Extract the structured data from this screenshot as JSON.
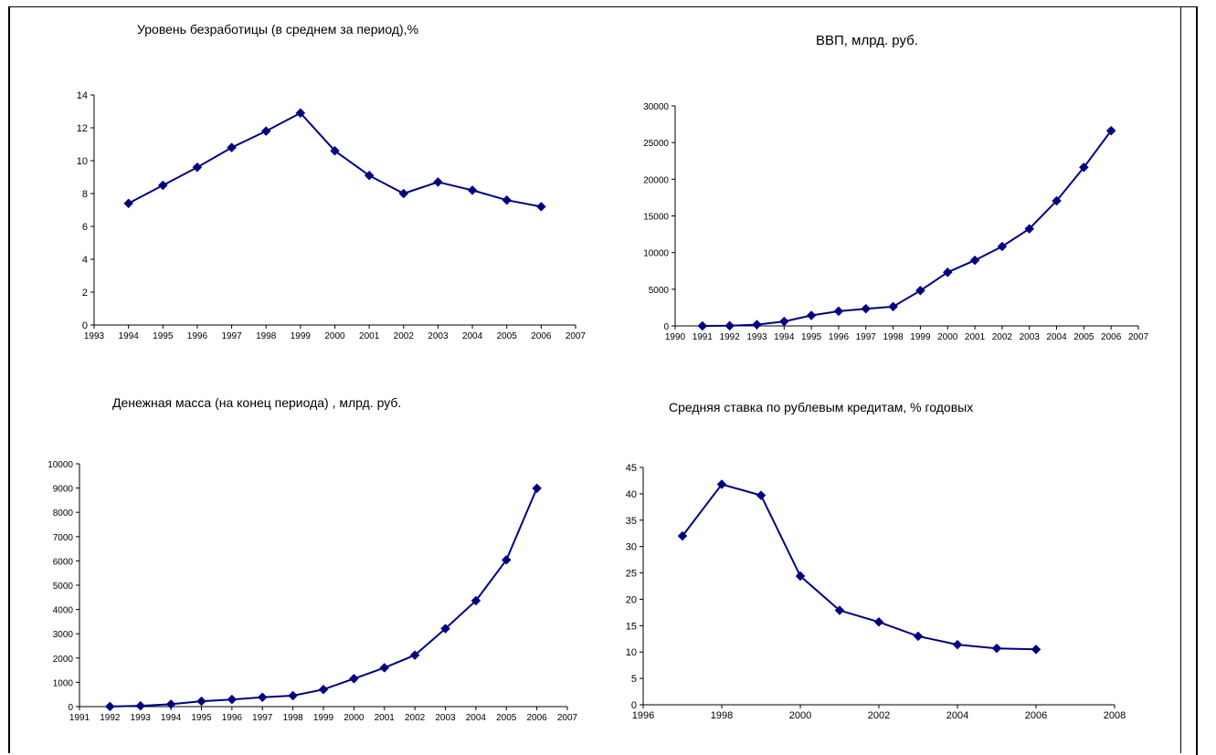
{
  "chart_data": [
    {
      "type": "line",
      "title": "Уровень безработицы (в среднем за период),%",
      "xlabel": "",
      "ylabel": "",
      "xlim": [
        1993,
        2007
      ],
      "ylim": [
        0,
        14
      ],
      "yticks": [
        0,
        2,
        4,
        6,
        8,
        10,
        12,
        14
      ],
      "xticks": [
        1993,
        1994,
        1995,
        1996,
        1997,
        1998,
        1999,
        2000,
        2001,
        2002,
        2003,
        2004,
        2005,
        2006,
        2007
      ],
      "series": [
        {
          "x": [
            1994,
            1995,
            1996,
            1997,
            1998,
            1999,
            2000,
            2001,
            2002,
            2003,
            2004,
            2005,
            2006
          ],
          "values": [
            7.4,
            8.5,
            9.6,
            10.8,
            11.8,
            12.9,
            10.6,
            9.1,
            8.0,
            8.7,
            8.2,
            7.6,
            7.2
          ]
        }
      ],
      "grid": false
    },
    {
      "type": "line",
      "title": "ВВП, млрд. руб.",
      "xlabel": "",
      "ylabel": "",
      "xlim": [
        1990,
        2007
      ],
      "ylim": [
        0,
        30000
      ],
      "yticks": [
        0,
        5000,
        10000,
        15000,
        20000,
        25000,
        30000
      ],
      "xticks": [
        1990,
        1991,
        1992,
        1993,
        1994,
        1995,
        1996,
        1997,
        1998,
        1999,
        2000,
        2001,
        2002,
        2003,
        2004,
        2005,
        2006,
        2007
      ],
      "series": [
        {
          "x": [
            1991,
            1992,
            1993,
            1994,
            1995,
            1996,
            1997,
            1998,
            1999,
            2000,
            2001,
            2002,
            2003,
            2004,
            2005,
            2006
          ],
          "values": [
            1,
            19,
            172,
            610,
            1429,
            2008,
            2343,
            2630,
            4823,
            7306,
            8944,
            10831,
            13243,
            17048,
            21625,
            26621
          ]
        }
      ],
      "grid": false
    },
    {
      "type": "line",
      "title": "Денежная масса (на конец периода) , млрд. руб.",
      "xlabel": "",
      "ylabel": "",
      "xlim": [
        1991,
        2007
      ],
      "ylim": [
        0,
        10000
      ],
      "yticks": [
        0,
        1000,
        2000,
        3000,
        4000,
        5000,
        6000,
        7000,
        8000,
        9000,
        10000
      ],
      "xticks": [
        1991,
        1992,
        1993,
        1994,
        1995,
        1996,
        1997,
        1998,
        1999,
        2000,
        2001,
        2002,
        2003,
        2004,
        2005,
        2006,
        2007
      ],
      "series": [
        {
          "x": [
            1992,
            1993,
            1994,
            1995,
            1996,
            1997,
            1998,
            1999,
            2000,
            2001,
            2002,
            2003,
            2004,
            2005,
            2006
          ],
          "values": [
            5,
            33,
            98,
            220,
            295,
            385,
            450,
            705,
            1150,
            1600,
            2120,
            3210,
            4360,
            6040,
            8990
          ]
        }
      ],
      "grid": false
    },
    {
      "type": "line",
      "title": "Средняя ставка по рублевым кредитам, % годовых",
      "xlabel": "",
      "ylabel": "",
      "xlim": [
        1996,
        2008
      ],
      "ylim": [
        0,
        45
      ],
      "yticks": [
        0,
        5,
        10,
        15,
        20,
        25,
        30,
        35,
        40,
        45
      ],
      "xticks": [
        1996,
        1998,
        2000,
        2002,
        2004,
        2006,
        2008
      ],
      "series": [
        {
          "x": [
            1997,
            1998,
            1999,
            2000,
            2001,
            2002,
            2003,
            2004,
            2005,
            2006
          ],
          "values": [
            32.0,
            41.8,
            39.7,
            24.4,
            17.9,
            15.7,
            13.0,
            11.4,
            10.7,
            10.5
          ]
        }
      ],
      "grid": false
    }
  ],
  "style": {
    "line_color": "#000080",
    "marker": "diamond"
  }
}
